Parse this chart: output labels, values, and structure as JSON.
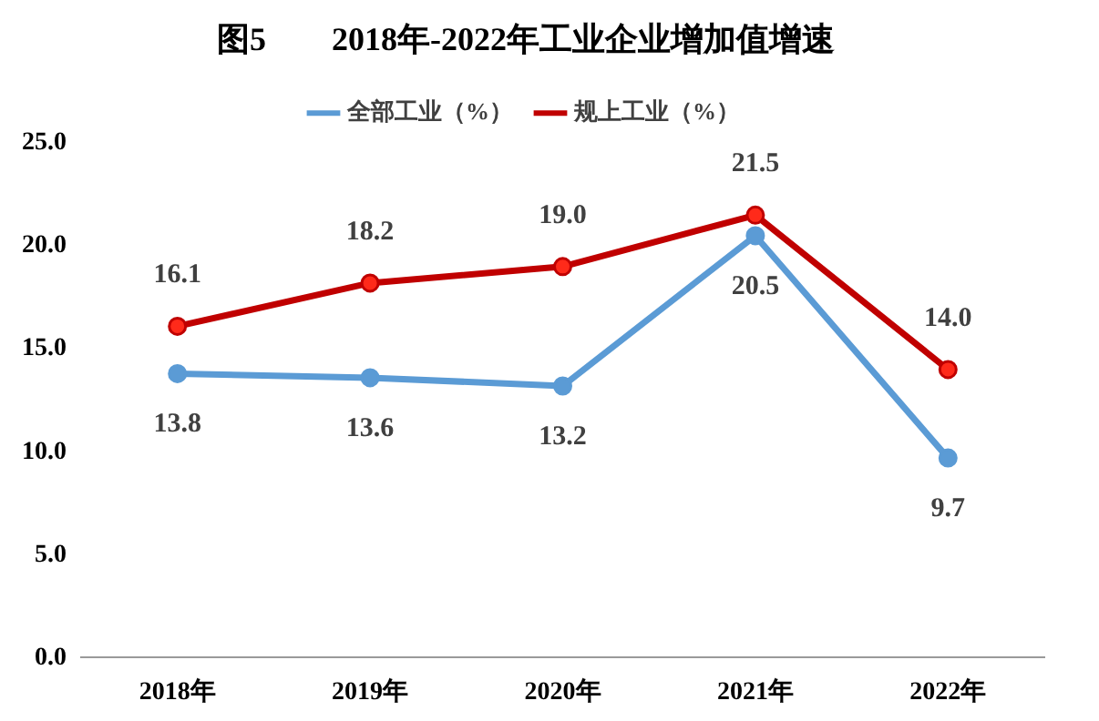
{
  "chart_data": {
    "type": "line",
    "title": "图5　　2018年-2022年工业企业增加值增速",
    "categories": [
      "2018年",
      "2019年",
      "2020年",
      "2021年",
      "2022年"
    ],
    "series": [
      {
        "name": "全部工业（%）",
        "color": "#5b9bd5",
        "values": [
          13.8,
          13.6,
          13.2,
          20.5,
          9.7
        ],
        "value_labels": [
          "13.8",
          "13.6",
          "13.2",
          "20.5",
          "9.7"
        ]
      },
      {
        "name": "规上工业（%）",
        "color": "#c00000",
        "values": [
          16.1,
          18.2,
          19.0,
          21.5,
          14.0
        ],
        "value_labels": [
          "16.1",
          "18.2",
          "19.0",
          "21.5",
          "14.0"
        ]
      }
    ],
    "ylim": [
      0,
      25
    ],
    "yticks": [
      {
        "value": 0,
        "label": "0.0"
      },
      {
        "value": 5,
        "label": "5.0"
      },
      {
        "value": 10,
        "label": "10.0"
      },
      {
        "value": 15,
        "label": "15.0"
      },
      {
        "value": 20,
        "label": "20.0"
      },
      {
        "value": 25,
        "label": "25.0"
      }
    ],
    "grid": false,
    "legend": "top",
    "marker": "circle",
    "line_style": "solid"
  }
}
